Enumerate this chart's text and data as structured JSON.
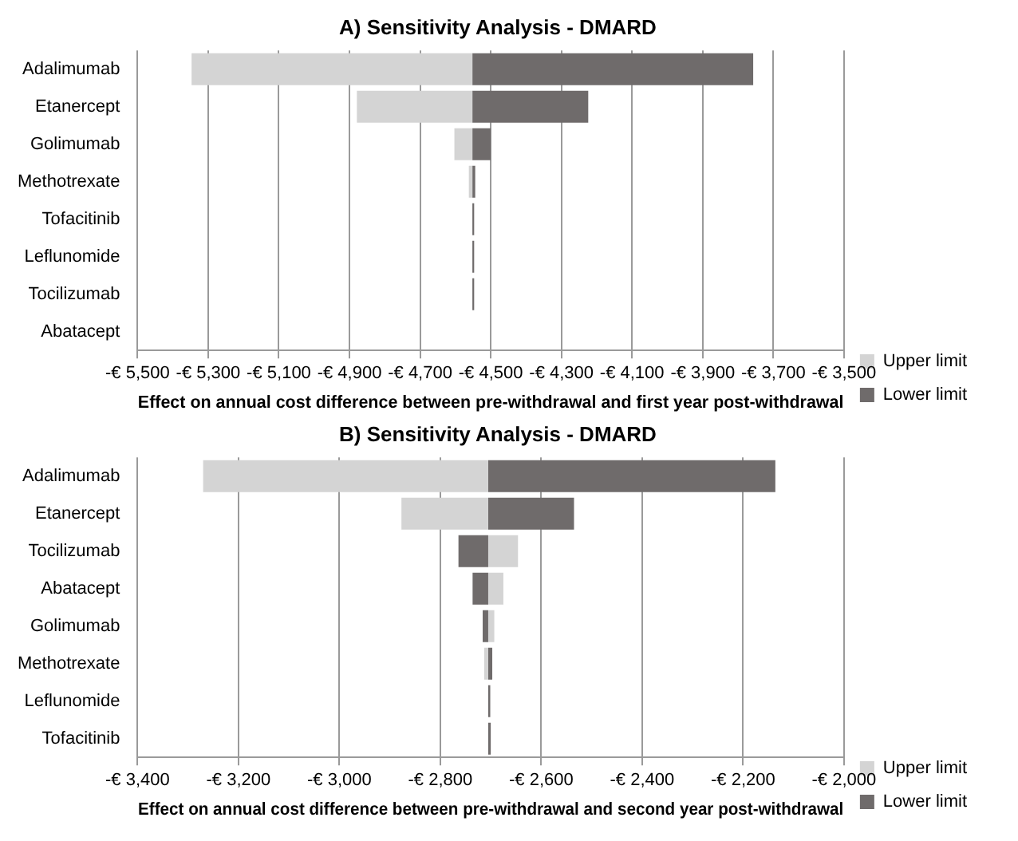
{
  "chart_data": [
    {
      "type": "bar",
      "orientation": "horizontal",
      "title": "A) Sensitivity Analysis - DMARD",
      "xlabel": "Effect on annual cost difference between pre-withdrawal and first year post-withdrawal",
      "categories": [
        "Adalimumab",
        "Etanercept",
        "Golimumab",
        "Methotrexate",
        "Tofacitinib",
        "Leflunomide",
        "Tocilizumab",
        "Abatacept"
      ],
      "series": [
        {
          "name": "Upper limit",
          "color": "#d4d4d4",
          "base": [
            -4552,
            -4552,
            -4552,
            -4552,
            null,
            null,
            null,
            null
          ],
          "values": [
            -795,
            -327,
            -51,
            -10,
            null,
            null,
            null,
            null
          ]
        },
        {
          "name": "Lower limit",
          "color": "#6f6b6b",
          "base": [
            -4552,
            -4552,
            -4552,
            -4552,
            -4552,
            -4552,
            -4552,
            null
          ],
          "values": [
            795,
            328,
            52,
            8,
            5,
            5,
            5,
            null
          ]
        }
      ],
      "xlim": [
        -5500,
        -3500
      ],
      "xticks": [
        {
          "value": -5500,
          "label": "-€ 5,500"
        },
        {
          "value": -5300,
          "label": "-€ 5,300"
        },
        {
          "value": -5100,
          "label": "-€ 5,100"
        },
        {
          "value": -4900,
          "label": "-€ 4,900"
        },
        {
          "value": -4700,
          "label": "-€ 4,700"
        },
        {
          "value": -4500,
          "label": "-€ 4,500"
        },
        {
          "value": -4300,
          "label": "-€ 4,300"
        },
        {
          "value": -4100,
          "label": "-€ 4,100"
        },
        {
          "value": -3900,
          "label": "-€ 3,900"
        },
        {
          "value": -3700,
          "label": "-€ 3,700"
        },
        {
          "value": -3500,
          "label": "-€ 3,500"
        }
      ],
      "grid": "x",
      "legend": "bottom right"
    },
    {
      "type": "bar",
      "orientation": "horizontal",
      "title": "B) Sensitivity Analysis - DMARD",
      "xlabel": "Effect on annual cost difference between pre-withdrawal and second year post-withdrawal",
      "categories": [
        "Adalimumab",
        "Etanercept",
        "Tocilizumab",
        "Abatacept",
        "Golimumab",
        "Methotrexate",
        "Leflunomide",
        "Tofacitinib"
      ],
      "series": [
        {
          "name": "Upper limit",
          "color": "#d4d4d4",
          "base": [
            -2705,
            -2705,
            -2705,
            -2705,
            -2705,
            -2705,
            null,
            null
          ],
          "values": [
            -565,
            -172,
            59,
            30,
            12,
            -8,
            null,
            null
          ]
        },
        {
          "name": "Lower limit",
          "color": "#6f6b6b",
          "base": [
            -2705,
            -2705,
            -2705,
            -2705,
            -2705,
            -2705,
            -2705,
            -2705
          ],
          "values": [
            569,
            170,
            -59,
            -31,
            -11,
            8,
            4,
            5
          ]
        }
      ],
      "xlim": [
        -3400,
        -2000
      ],
      "xticks": [
        {
          "value": -3400,
          "label": "-€ 3,400"
        },
        {
          "value": -3200,
          "label": "-€ 3,200"
        },
        {
          "value": -3000,
          "label": "-€ 3,000"
        },
        {
          "value": -2800,
          "label": "-€ 2,800"
        },
        {
          "value": -2600,
          "label": "-€ 2,600"
        },
        {
          "value": -2400,
          "label": "-€ 2,400"
        },
        {
          "value": -2200,
          "label": "-€ 2,200"
        },
        {
          "value": -2000,
          "label": "-€ 2,000"
        }
      ],
      "grid": "x",
      "legend": "bottom right"
    }
  ]
}
